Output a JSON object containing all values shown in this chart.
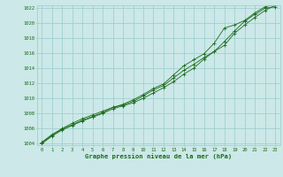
{
  "x": [
    0,
    1,
    2,
    3,
    4,
    5,
    6,
    7,
    8,
    9,
    10,
    11,
    12,
    13,
    14,
    15,
    16,
    17,
    18,
    19,
    20,
    21,
    22,
    23
  ],
  "line1": [
    1004.2,
    1005.2,
    1006.0,
    1006.7,
    1007.3,
    1007.8,
    1008.3,
    1008.8,
    1009.1,
    1009.6,
    1010.3,
    1011.1,
    1011.7,
    1012.7,
    1013.7,
    1014.5,
    1015.4,
    1016.2,
    1017.0,
    1018.6,
    1019.7,
    1020.7,
    1021.6,
    1022.3
  ],
  "line2": [
    1004.0,
    1005.0,
    1005.8,
    1006.4,
    1007.0,
    1007.5,
    1008.0,
    1008.6,
    1009.0,
    1009.4,
    1010.0,
    1010.7,
    1011.4,
    1012.2,
    1013.2,
    1014.0,
    1015.2,
    1016.2,
    1017.5,
    1018.9,
    1020.2,
    1021.1,
    1021.9,
    1022.1
  ],
  "line3": [
    1004.1,
    1005.1,
    1005.9,
    1006.5,
    1007.1,
    1007.6,
    1008.1,
    1008.8,
    1009.2,
    1009.8,
    1010.5,
    1011.3,
    1011.9,
    1013.1,
    1014.3,
    1015.1,
    1015.9,
    1017.3,
    1019.3,
    1019.7,
    1020.3,
    1021.3,
    1022.1,
    1022.4
  ],
  "line_color": "#1a6b1a",
  "bg_color": "#cce8e8",
  "grid_color": "#99cccc",
  "xlabel": "Graphe pression niveau de la mer (hPa)",
  "ylim": [
    1004,
    1022
  ],
  "xlim": [
    -0.5,
    23.5
  ],
  "yticks": [
    1004,
    1006,
    1008,
    1010,
    1012,
    1014,
    1016,
    1018,
    1020,
    1022
  ],
  "xticks": [
    0,
    1,
    2,
    3,
    4,
    5,
    6,
    7,
    8,
    9,
    10,
    11,
    12,
    13,
    14,
    15,
    16,
    17,
    18,
    19,
    20,
    21,
    22,
    23
  ],
  "tick_fontsize": 4.0,
  "xlabel_fontsize": 5.2
}
